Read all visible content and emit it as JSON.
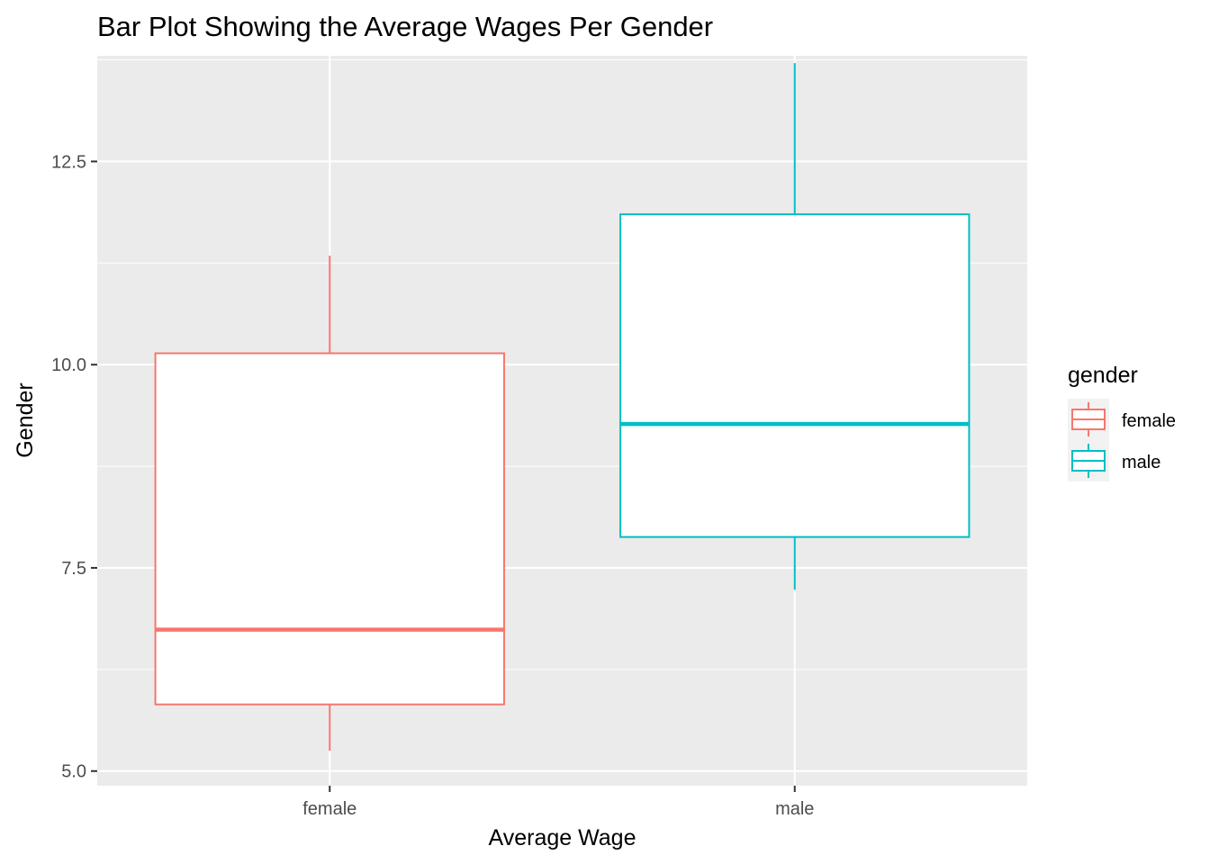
{
  "chart_data": {
    "type": "boxplot",
    "title": "Bar Plot Showing the Average Wages Per Gender",
    "xlabel": "Average Wage",
    "ylabel": "Gender",
    "categories": [
      "female",
      "male"
    ],
    "y_ticks": [
      "5.0",
      "7.5",
      "10.0",
      "12.5"
    ],
    "y_tick_values": [
      5.0,
      7.5,
      10.0,
      12.5
    ],
    "ylim": [
      4.82,
      13.8
    ],
    "grid": true,
    "legend": {
      "title": "gender",
      "position": "right",
      "entries": [
        "female",
        "male"
      ]
    },
    "series": [
      {
        "name": "female",
        "color": "#F8766D",
        "min": 5.25,
        "q1": 5.82,
        "median": 6.74,
        "q3": 10.14,
        "max": 11.34
      },
      {
        "name": "male",
        "color": "#00BFC4",
        "min": 7.23,
        "q1": 7.88,
        "median": 9.27,
        "q3": 11.85,
        "max": 13.71
      }
    ],
    "panel_background": "#EBEBEB",
    "grid_color": "#FFFFFF"
  }
}
